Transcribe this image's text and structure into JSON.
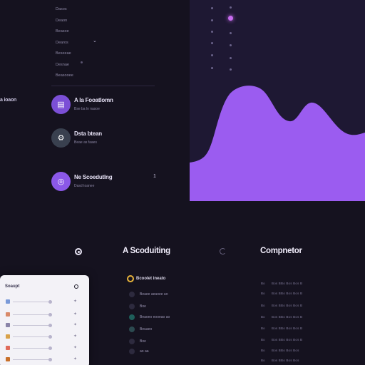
{
  "mini_menu": {
    "items": [
      "Dasos",
      "Deaon",
      "Beasoe",
      "Dearos",
      "Beseeae",
      "Desnae",
      "Beasooee"
    ]
  },
  "side_label": "a ioaon",
  "people": [
    {
      "name": "A la Fooatlomn",
      "sub": "Bse ba ln nasoe",
      "color": "#7b4fd6",
      "glyph": "▤"
    },
    {
      "name": "Dsta btean",
      "sub": "Beae as faaes",
      "color": "#39404f",
      "glyph": "⚘"
    },
    {
      "name": "Ne Scoedutlng",
      "sub": "Dasd  toanee",
      "color": "#8b58e8",
      "glyph": "◎",
      "extra": "1"
    }
  ],
  "sections": {
    "scheduling": "A Scoduiting",
    "computer": "Compnetor"
  },
  "card": {
    "title": "Soaupt",
    "rows": [
      {
        "icon_color": "#7a9ad8"
      },
      {
        "icon_color": "#d98a6a"
      },
      {
        "icon_color": "#8a84a8"
      },
      {
        "icon_color": "#d9a24a"
      },
      {
        "icon_color": "#e06a5a"
      },
      {
        "icon_color": "#c8702a"
      }
    ]
  },
  "scheduling_list": {
    "title": "Bcoolet ineato",
    "rows": [
      {
        "text": "Beaee aeaoee ao",
        "color": "#2d2a3e"
      },
      {
        "text": "Boe",
        "color": "#2d2a3e"
      },
      {
        "text": "Beaoeo eooeao ao",
        "color": "#1e5e5a"
      },
      {
        "text": "Beuaeo",
        "color": "#2c4a50"
      },
      {
        "text": "Boe",
        "color": "#2d2a3e"
      },
      {
        "text": "ao aa",
        "color": "#2d2a3e"
      }
    ]
  },
  "computer_table": {
    "rows": [
      [
        "Bo",
        "Bos BBo Bos Bos B"
      ],
      [
        "Bo",
        "Bos BBo Bos Bos B"
      ],
      [
        "Bo",
        "Bos BBo Bos Bos B"
      ],
      [
        "Bo",
        "Bos BBo Bos Bos B"
      ],
      [
        "Bo",
        "Bos BBo Bos Bos B"
      ],
      [
        "Bo",
        "Bos BBo Bos Bos B"
      ],
      [
        "Bo",
        "Bos BBo Bos Bos"
      ],
      [
        "Bo",
        "Bos BBo Bos Bos"
      ]
    ]
  },
  "colors": {
    "accent": "#9b5cf0",
    "background": "#15121f",
    "panel": "#1e1833"
  }
}
